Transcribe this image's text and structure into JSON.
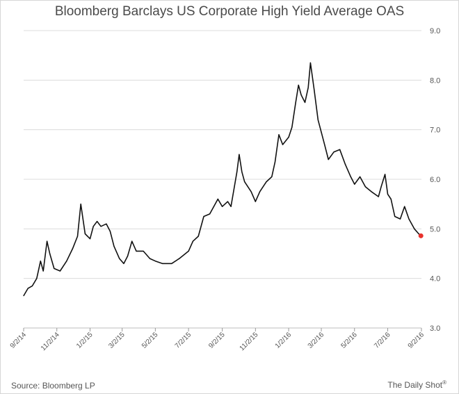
{
  "title": "Bloomberg Barclays US Corporate High Yield Average OAS",
  "source": "Source: Bloomberg LP",
  "brand": "The Daily Shot",
  "brand_mark": "®",
  "colors": {
    "line": "#111111",
    "marker": "#e8322c",
    "grid": "#dcdcdc",
    "text": "#555555"
  },
  "chart_data": {
    "type": "line",
    "title": "Bloomberg Barclays US Corporate High Yield Average OAS",
    "xlabel": "",
    "ylabel": "",
    "ylim": [
      3.0,
      9.0
    ],
    "yticks": [
      3.0,
      4.0,
      5.0,
      6.0,
      7.0,
      8.0,
      9.0
    ],
    "ytick_labels": [
      "3.0",
      "4.0",
      "5.0",
      "6.0",
      "7.0",
      "8.0",
      "9.0"
    ],
    "y_axis_side": "right",
    "grid": "horizontal",
    "xlim": [
      "2014-09-02",
      "2016-09-02"
    ],
    "xticks": [
      "2014-09-02",
      "2014-11-02",
      "2015-01-02",
      "2015-03-02",
      "2015-05-02",
      "2015-07-02",
      "2015-09-02",
      "2015-11-02",
      "2016-01-02",
      "2016-03-02",
      "2016-05-02",
      "2016-07-02",
      "2016-09-02"
    ],
    "xtick_labels": [
      "9/2/14",
      "11/2/14",
      "1/2/15",
      "3/2/15",
      "5/2/15",
      "7/2/15",
      "9/2/15",
      "11/2/15",
      "1/2/16",
      "3/2/16",
      "5/2/16",
      "7/2/16",
      "9/2/16"
    ],
    "series": [
      {
        "points": [
          [
            "2014-09-02",
            3.65
          ],
          [
            "2014-09-10",
            3.8
          ],
          [
            "2014-09-18",
            3.85
          ],
          [
            "2014-09-26",
            4.0
          ],
          [
            "2014-10-03",
            4.35
          ],
          [
            "2014-10-08",
            4.15
          ],
          [
            "2014-10-15",
            4.75
          ],
          [
            "2014-10-20",
            4.5
          ],
          [
            "2014-10-28",
            4.2
          ],
          [
            "2014-11-08",
            4.15
          ],
          [
            "2014-11-20",
            4.35
          ],
          [
            "2014-12-01",
            4.6
          ],
          [
            "2014-12-10",
            4.85
          ],
          [
            "2014-12-16",
            5.5
          ],
          [
            "2014-12-24",
            4.9
          ],
          [
            "2015-01-02",
            4.8
          ],
          [
            "2015-01-08",
            5.05
          ],
          [
            "2015-01-15",
            5.15
          ],
          [
            "2015-01-22",
            5.05
          ],
          [
            "2015-02-01",
            5.1
          ],
          [
            "2015-02-08",
            4.95
          ],
          [
            "2015-02-15",
            4.65
          ],
          [
            "2015-02-25",
            4.4
          ],
          [
            "2015-03-05",
            4.3
          ],
          [
            "2015-03-12",
            4.45
          ],
          [
            "2015-03-20",
            4.75
          ],
          [
            "2015-03-28",
            4.55
          ],
          [
            "2015-04-10",
            4.55
          ],
          [
            "2015-04-22",
            4.4
          ],
          [
            "2015-05-02",
            4.35
          ],
          [
            "2015-05-15",
            4.3
          ],
          [
            "2015-06-01",
            4.3
          ],
          [
            "2015-06-15",
            4.4
          ],
          [
            "2015-07-02",
            4.55
          ],
          [
            "2015-07-10",
            4.75
          ],
          [
            "2015-07-20",
            4.85
          ],
          [
            "2015-07-30",
            5.25
          ],
          [
            "2015-08-10",
            5.3
          ],
          [
            "2015-08-25",
            5.6
          ],
          [
            "2015-09-02",
            5.45
          ],
          [
            "2015-09-12",
            5.55
          ],
          [
            "2015-09-18",
            5.45
          ],
          [
            "2015-09-29",
            6.15
          ],
          [
            "2015-10-03",
            6.5
          ],
          [
            "2015-10-08",
            6.15
          ],
          [
            "2015-10-13",
            5.95
          ],
          [
            "2015-10-25",
            5.75
          ],
          [
            "2015-11-02",
            5.55
          ],
          [
            "2015-11-10",
            5.75
          ],
          [
            "2015-11-22",
            5.95
          ],
          [
            "2015-12-02",
            6.05
          ],
          [
            "2015-12-08",
            6.35
          ],
          [
            "2015-12-15",
            6.9
          ],
          [
            "2015-12-22",
            6.7
          ],
          [
            "2016-01-02",
            6.85
          ],
          [
            "2016-01-08",
            7.05
          ],
          [
            "2016-01-15",
            7.55
          ],
          [
            "2016-01-20",
            7.9
          ],
          [
            "2016-01-25",
            7.7
          ],
          [
            "2016-02-01",
            7.55
          ],
          [
            "2016-02-07",
            7.85
          ],
          [
            "2016-02-11",
            8.35
          ],
          [
            "2016-02-18",
            7.8
          ],
          [
            "2016-02-25",
            7.2
          ],
          [
            "2016-03-02",
            6.95
          ],
          [
            "2016-03-08",
            6.7
          ],
          [
            "2016-03-15",
            6.4
          ],
          [
            "2016-03-25",
            6.55
          ],
          [
            "2016-04-05",
            6.6
          ],
          [
            "2016-04-15",
            6.3
          ],
          [
            "2016-04-25",
            6.05
          ],
          [
            "2016-05-02",
            5.9
          ],
          [
            "2016-05-12",
            6.05
          ],
          [
            "2016-05-22",
            5.85
          ],
          [
            "2016-06-02",
            5.75
          ],
          [
            "2016-06-15",
            5.65
          ],
          [
            "2016-06-20",
            5.85
          ],
          [
            "2016-06-27",
            6.1
          ],
          [
            "2016-07-02",
            5.7
          ],
          [
            "2016-07-08",
            5.6
          ],
          [
            "2016-07-15",
            5.25
          ],
          [
            "2016-07-25",
            5.2
          ],
          [
            "2016-08-02",
            5.45
          ],
          [
            "2016-08-10",
            5.2
          ],
          [
            "2016-08-20",
            5.0
          ],
          [
            "2016-08-28",
            4.9
          ],
          [
            "2016-09-01",
            4.86
          ]
        ]
      }
    ],
    "highlight_point": [
      "2016-09-01",
      4.86
    ]
  }
}
